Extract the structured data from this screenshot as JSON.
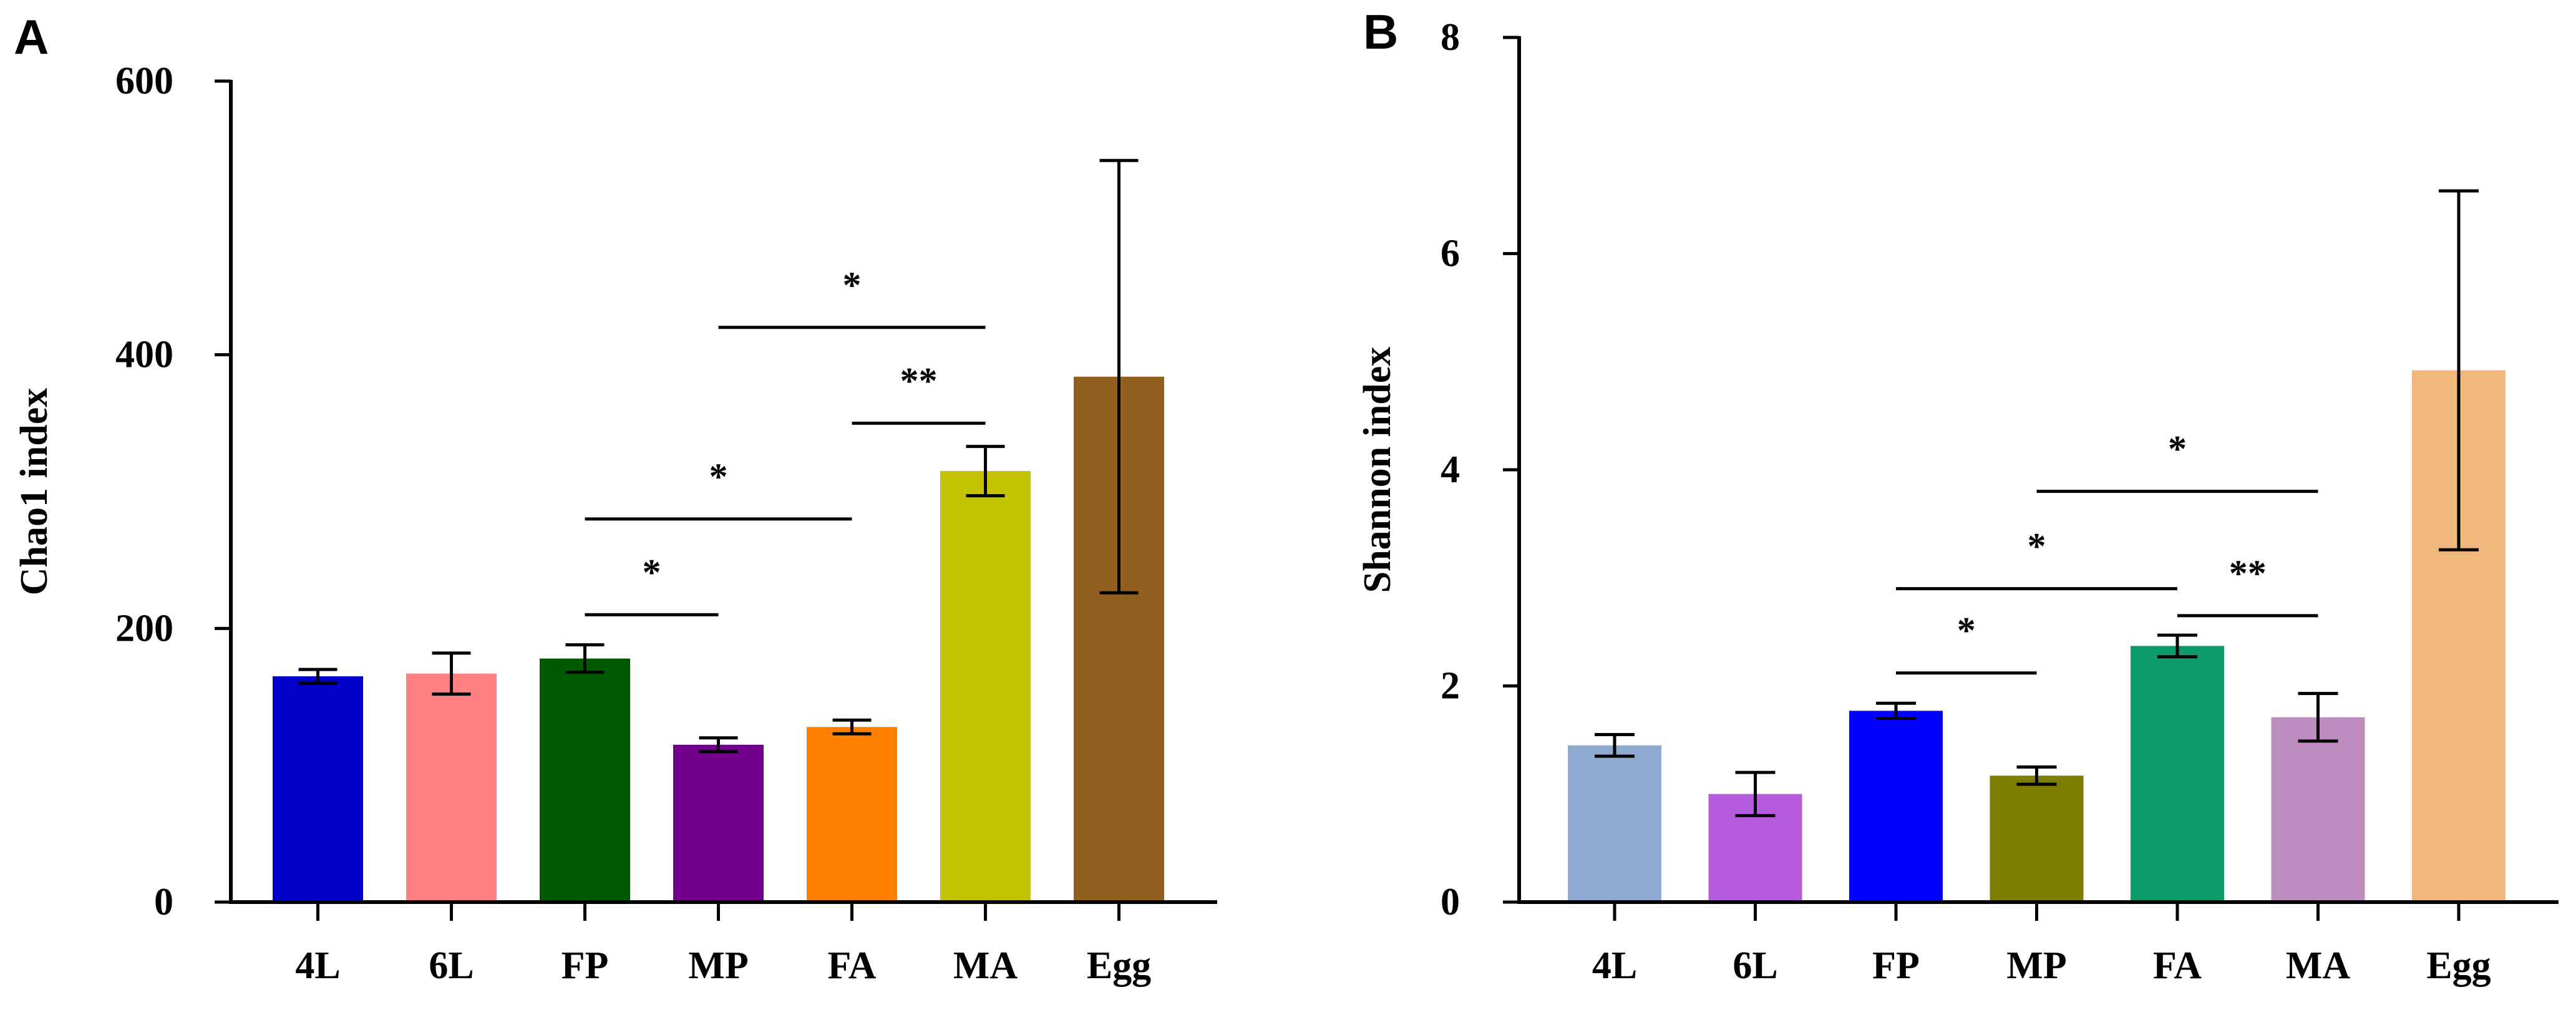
{
  "chart_data": [
    {
      "panel": "A",
      "type": "bar",
      "title": "",
      "xlabel": "",
      "ylabel": "Chao1 index",
      "categories": [
        "4L",
        "6L",
        "FP",
        "MP",
        "FA",
        "MA",
        "Egg"
      ],
      "values": [
        165,
        167,
        178,
        115,
        128,
        315,
        384
      ],
      "errors": [
        5,
        15,
        10,
        5,
        5,
        18,
        158
      ],
      "colors": [
        "#0000C8",
        "#FF8080",
        "#005A00",
        "#73008C",
        "#FF8000",
        "#C3C300",
        "#915F1E"
      ],
      "ylim": [
        0,
        600
      ],
      "yticks": [
        0,
        200,
        400,
        600
      ],
      "grid": false,
      "significance": [
        {
          "from": "FP",
          "to": "MP",
          "label": "*",
          "y": 210
        },
        {
          "from": "FP",
          "to": "FA",
          "label": "*",
          "y": 280
        },
        {
          "from": "FA",
          "to": "MA",
          "label": "**",
          "y": 350
        },
        {
          "from": "MP",
          "to": "MA",
          "label": "*",
          "y": 420
        }
      ]
    },
    {
      "panel": "B",
      "type": "bar",
      "title": "",
      "xlabel": "",
      "ylabel": "Shannon index",
      "categories": [
        "4L",
        "6L",
        "FP",
        "MP",
        "FA",
        "MA",
        "Egg"
      ],
      "values": [
        1.45,
        1.0,
        1.77,
        1.17,
        2.37,
        1.71,
        4.92
      ],
      "errors": [
        0.1,
        0.2,
        0.07,
        0.08,
        0.1,
        0.22,
        1.66
      ],
      "colors": [
        "#8CAAD2",
        "#B45ADC",
        "#0000FF",
        "#7D7D00",
        "#0A9B69",
        "#BE8CBE",
        "#F0B87D"
      ],
      "ylim": [
        0,
        8
      ],
      "yticks": [
        0,
        2,
        4,
        6,
        8
      ],
      "grid": false,
      "significance": [
        {
          "from": "FP",
          "to": "MP",
          "label": "*",
          "y": 2.12
        },
        {
          "from": "FA",
          "to": "MA",
          "label": "**",
          "y": 2.65
        },
        {
          "from": "FP",
          "to": "FA",
          "label": "*",
          "y": 2.9
        },
        {
          "from": "MP",
          "to": "MA",
          "label": "*",
          "y": 3.8
        }
      ]
    }
  ]
}
